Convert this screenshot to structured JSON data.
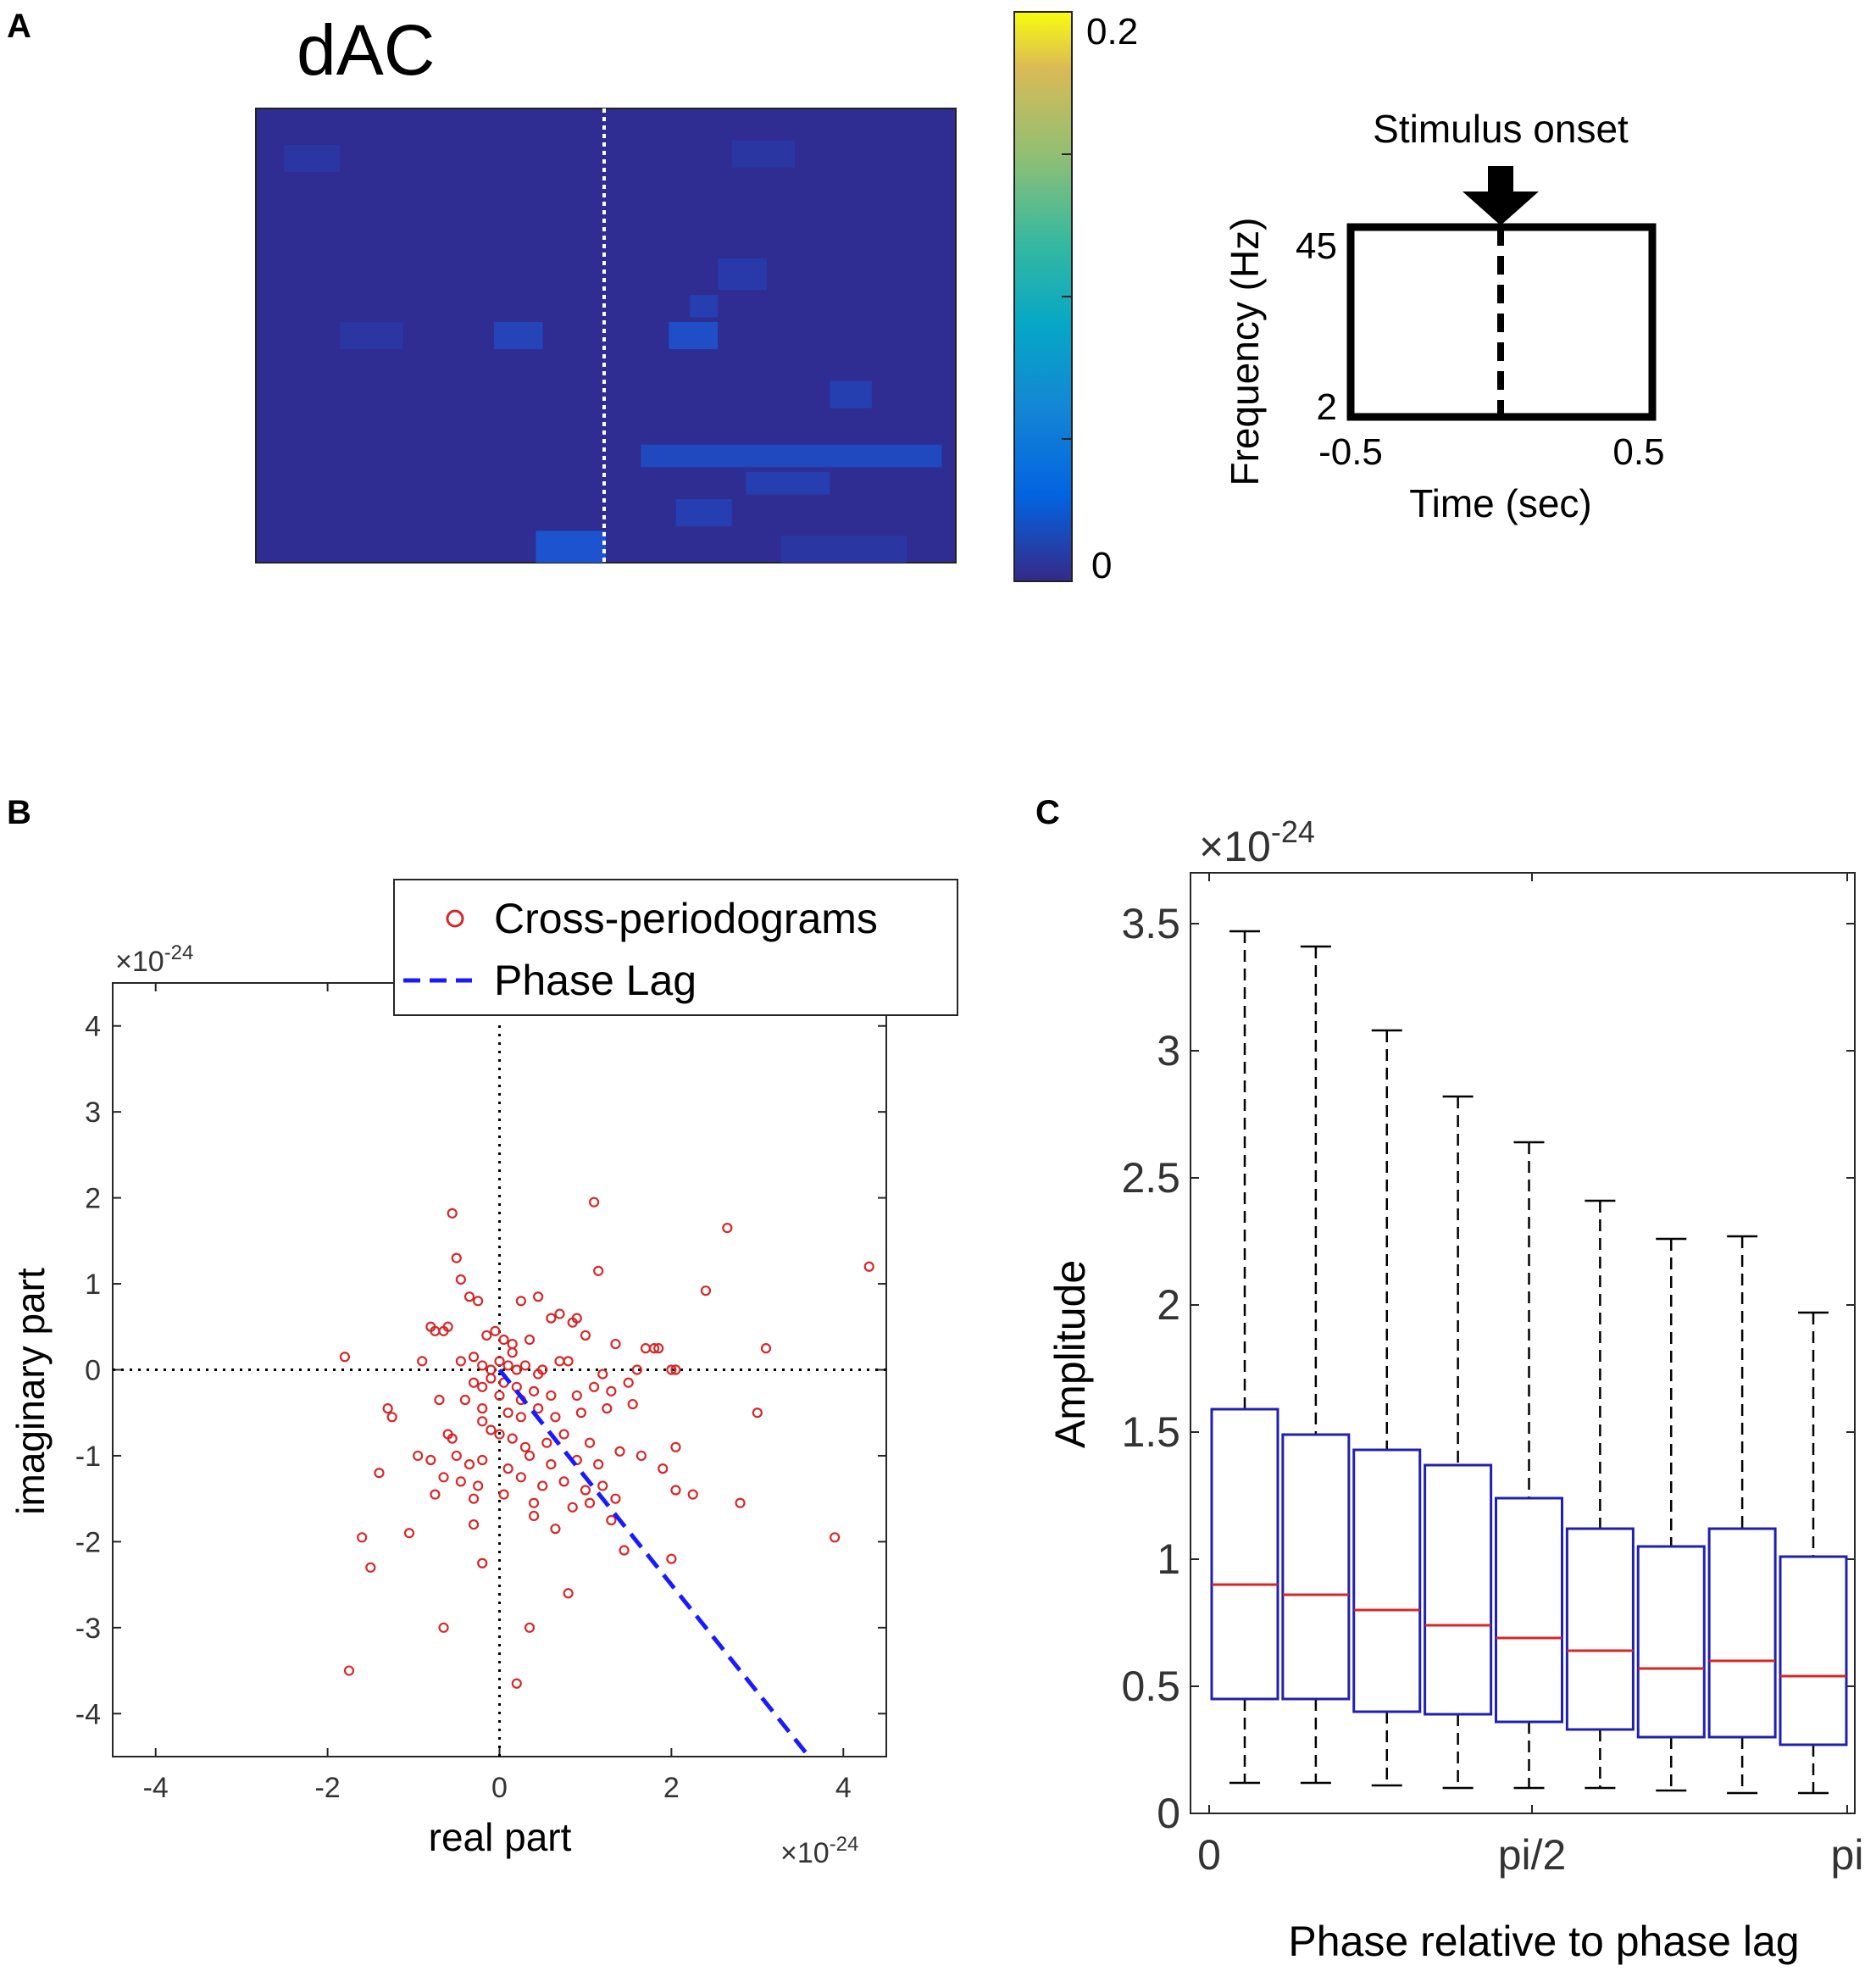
{
  "panel_labels": {
    "a": "A",
    "b": "B",
    "c": "C"
  },
  "heatmap": {
    "title": "dAC",
    "colorbar": {
      "max_label": "0.2",
      "min_label": "0"
    },
    "cells": [
      {
        "t": 0.04,
        "f": 0.08,
        "w": 0.08,
        "h": 0.06,
        "v": 0.01
      },
      {
        "t": 0.68,
        "f": 0.07,
        "w": 0.09,
        "h": 0.06,
        "v": 0.01
      },
      {
        "t": 0.66,
        "f": 0.33,
        "w": 0.07,
        "h": 0.07,
        "v": 0.015
      },
      {
        "t": 0.62,
        "f": 0.41,
        "w": 0.04,
        "h": 0.05,
        "v": 0.02
      },
      {
        "t": 0.12,
        "f": 0.47,
        "w": 0.09,
        "h": 0.06,
        "v": 0.01
      },
      {
        "t": 0.34,
        "f": 0.47,
        "w": 0.07,
        "h": 0.06,
        "v": 0.025
      },
      {
        "t": 0.59,
        "f": 0.47,
        "w": 0.07,
        "h": 0.06,
        "v": 0.035
      },
      {
        "t": 0.82,
        "f": 0.6,
        "w": 0.06,
        "h": 0.06,
        "v": 0.02
      },
      {
        "t": 0.55,
        "f": 0.74,
        "w": 0.43,
        "h": 0.05,
        "v": 0.03
      },
      {
        "t": 0.7,
        "f": 0.8,
        "w": 0.12,
        "h": 0.05,
        "v": 0.02
      },
      {
        "t": 0.6,
        "f": 0.86,
        "w": 0.08,
        "h": 0.06,
        "v": 0.02
      },
      {
        "t": 0.4,
        "f": 0.93,
        "w": 0.1,
        "h": 0.07,
        "v": 0.04
      },
      {
        "t": 0.75,
        "f": 0.94,
        "w": 0.18,
        "h": 0.06,
        "v": 0.01
      }
    ]
  },
  "schematic": {
    "stimulus_label": "Stimulus onset",
    "ylabel": "Frequency (Hz)",
    "xlabel": "Time (sec)",
    "y_top": "45",
    "y_bottom": "2",
    "x_left": "-0.5",
    "x_right": "0.5"
  },
  "chart_data": [
    {
      "type": "scatter",
      "panel": "B",
      "xlabel": "real part",
      "ylabel": "imaginary part",
      "x_exponent": "×10",
      "x_exponent_power": "-24",
      "y_exponent": "×10",
      "y_exponent_power": "-24",
      "xlim": [
        -4.5,
        4.5
      ],
      "ylim": [
        -4.5,
        4.5
      ],
      "xticks": [
        "-4",
        "-2",
        "0",
        "2",
        "4"
      ],
      "yticks": [
        "4",
        "3",
        "2",
        "1",
        "0",
        "-1",
        "-2",
        "-3",
        "-4"
      ],
      "legend": [
        "Cross-periodograms",
        "Phase Lag"
      ],
      "legend_position": "top-right",
      "phase_lag_line": {
        "x": [
          0,
          3.6
        ],
        "y": [
          0,
          -4.5
        ]
      },
      "series": [
        {
          "name": "Cross-periodograms",
          "x": [
            1.1,
            2.65,
            4.3,
            -0.55,
            2.4,
            -0.5,
            1.15,
            -0.45,
            -0.35,
            -0.25,
            0.25,
            0.45,
            0.6,
            0.7,
            0.85,
            0.9,
            -0.8,
            -0.75,
            -0.65,
            -0.6,
            -0.15,
            -0.05,
            0.05,
            0.15,
            0.35,
            1.0,
            1.35,
            1.7,
            1.8,
            1.85,
            3.1,
            -1.8,
            -0.9,
            -0.45,
            -0.3,
            -0.2,
            -0.1,
            0.0,
            0.1,
            0.2,
            0.3,
            0.5,
            0.7,
            0.8,
            1.2,
            1.6,
            2.0,
            2.05,
            -0.3,
            -0.2,
            -0.1,
            0.05,
            0.2,
            0.4,
            0.6,
            0.9,
            1.1,
            1.3,
            1.5,
            -1.3,
            -1.25,
            -0.7,
            -0.4,
            -0.2,
            0.1,
            0.25,
            0.45,
            0.65,
            0.95,
            1.25,
            1.55,
            3.0,
            -0.6,
            -0.55,
            -0.1,
            0.0,
            0.15,
            0.3,
            0.55,
            0.75,
            1.05,
            1.4,
            2.05,
            -0.95,
            -0.8,
            -0.5,
            -0.35,
            -0.2,
            0.1,
            0.35,
            0.6,
            0.9,
            1.15,
            1.65,
            1.9,
            -1.4,
            -0.65,
            -0.45,
            -0.25,
            0.25,
            0.5,
            0.75,
            1.0,
            1.2,
            2.05,
            2.25,
            -0.75,
            -0.3,
            0.05,
            0.4,
            0.85,
            1.05,
            1.35,
            2.8,
            3.9,
            -1.6,
            -1.05,
            -0.3,
            0.4,
            0.65,
            1.3,
            -1.5,
            -0.2,
            1.45,
            2.0,
            0.8,
            -0.65,
            0.35,
            -1.75,
            0.2,
            -0.2,
            0.15,
            0.0,
            0.25,
            0.45
          ],
          "y": [
            1.95,
            1.65,
            1.2,
            1.82,
            0.92,
            1.3,
            1.15,
            1.05,
            0.85,
            0.8,
            0.8,
            0.85,
            0.6,
            0.65,
            0.55,
            0.6,
            0.5,
            0.45,
            0.45,
            0.5,
            0.4,
            0.45,
            0.35,
            0.3,
            0.35,
            0.4,
            0.3,
            0.25,
            0.25,
            0.25,
            0.25,
            0.15,
            0.1,
            0.1,
            0.15,
            0.05,
            0.0,
            0.1,
            0.05,
            0.0,
            0.05,
            0.0,
            0.1,
            0.1,
            -0.05,
            0.0,
            0.0,
            0.0,
            -0.15,
            -0.2,
            -0.1,
            -0.15,
            -0.2,
            -0.25,
            -0.3,
            -0.3,
            -0.2,
            -0.25,
            -0.15,
            -0.45,
            -0.55,
            -0.35,
            -0.35,
            -0.45,
            -0.5,
            -0.55,
            -0.45,
            -0.55,
            -0.5,
            -0.45,
            -0.4,
            -0.5,
            -0.75,
            -0.8,
            -0.7,
            -0.75,
            -0.8,
            -0.9,
            -0.85,
            -0.75,
            -0.85,
            -0.95,
            -0.9,
            -1.0,
            -1.05,
            -1.0,
            -1.1,
            -1.05,
            -1.15,
            -1.0,
            -1.1,
            -1.05,
            -1.1,
            -1.0,
            -1.15,
            -1.2,
            -1.25,
            -1.3,
            -1.35,
            -1.25,
            -1.35,
            -1.3,
            -1.4,
            -1.35,
            -1.4,
            -1.45,
            -1.45,
            -1.5,
            -1.45,
            -1.55,
            -1.6,
            -1.55,
            -1.5,
            -1.55,
            -1.95,
            -1.95,
            -1.9,
            -1.8,
            -1.7,
            -1.85,
            -1.75,
            -2.3,
            -2.25,
            -2.1,
            -2.2,
            -2.6,
            -3.0,
            -3.0,
            -3.5,
            -3.65,
            -0.6,
            0.2,
            -0.3,
            -0.35,
            -0.05
          ],
          "color": "#d62728"
        }
      ]
    },
    {
      "type": "box",
      "panel": "C",
      "xlabel": "Phase relative to phase lag",
      "ylabel": "Amplitude",
      "y_exponent": "×10",
      "y_exponent_power": "-24",
      "ylim": [
        0,
        3.7
      ],
      "yticks": [
        "0",
        "0.5",
        "1",
        "1.5",
        "2",
        "2.5",
        "3",
        "3.5"
      ],
      "xticks": [
        "0",
        "pi/2",
        "pi"
      ],
      "boxes": [
        {
          "min": 0.12,
          "q1": 0.45,
          "median": 0.9,
          "q3": 1.59,
          "max": 3.47
        },
        {
          "min": 0.12,
          "q1": 0.45,
          "median": 0.86,
          "q3": 1.49,
          "max": 3.41
        },
        {
          "min": 0.11,
          "q1": 0.4,
          "median": 0.8,
          "q3": 1.43,
          "max": 3.08
        },
        {
          "min": 0.1,
          "q1": 0.39,
          "median": 0.74,
          "q3": 1.37,
          "max": 2.82
        },
        {
          "min": 0.1,
          "q1": 0.36,
          "median": 0.69,
          "q3": 1.24,
          "max": 2.64
        },
        {
          "min": 0.1,
          "q1": 0.33,
          "median": 0.64,
          "q3": 1.12,
          "max": 2.41
        },
        {
          "min": 0.09,
          "q1": 0.3,
          "median": 0.57,
          "q3": 1.05,
          "max": 2.26
        },
        {
          "min": 0.08,
          "q1": 0.3,
          "median": 0.6,
          "q3": 1.12,
          "max": 2.27
        },
        {
          "min": 0.08,
          "q1": 0.27,
          "median": 0.54,
          "q3": 1.01,
          "max": 1.97
        }
      ]
    }
  ]
}
